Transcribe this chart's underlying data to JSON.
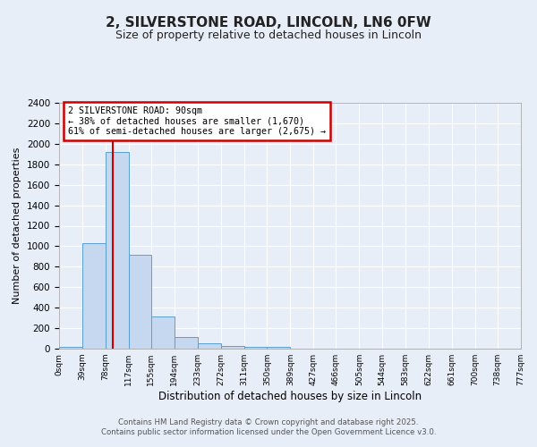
{
  "title": "2, SILVERSTONE ROAD, LINCOLN, LN6 0FW",
  "subtitle": "Size of property relative to detached houses in Lincoln",
  "xlabel": "Distribution of detached houses by size in Lincoln",
  "ylabel": "Number of detached properties",
  "annotation_line1": "2 SILVERSTONE ROAD: 90sqm",
  "annotation_line2": "← 38% of detached houses are smaller (1,670)",
  "annotation_line3": "61% of semi-detached houses are larger (2,675) →",
  "property_line_x": 90,
  "bin_edges": [
    0,
    39,
    78,
    117,
    155,
    194,
    233,
    272,
    311,
    350,
    389,
    427,
    466,
    505,
    544,
    583,
    622,
    661,
    700,
    738,
    777
  ],
  "bin_heights": [
    20,
    1030,
    1920,
    920,
    310,
    110,
    55,
    30,
    20,
    15,
    0,
    0,
    0,
    0,
    0,
    0,
    0,
    0,
    0,
    0
  ],
  "bar_color": "#c5d8ef",
  "bar_edge_color": "#5a9fd4",
  "red_line_color": "#cc0000",
  "annotation_box_color": "#cc0000",
  "background_color": "#e8eef8",
  "grid_color": "#ffffff",
  "ylim": [
    0,
    2400
  ],
  "yticks": [
    0,
    200,
    400,
    600,
    800,
    1000,
    1200,
    1400,
    1600,
    1800,
    2000,
    2200,
    2400
  ],
  "tick_labels": [
    "0sqm",
    "39sqm",
    "78sqm",
    "117sqm",
    "155sqm",
    "194sqm",
    "233sqm",
    "272sqm",
    "311sqm",
    "350sqm",
    "389sqm",
    "427sqm",
    "466sqm",
    "505sqm",
    "544sqm",
    "583sqm",
    "622sqm",
    "661sqm",
    "700sqm",
    "738sqm",
    "777sqm"
  ],
  "footer_line1": "Contains HM Land Registry data © Crown copyright and database right 2025.",
  "footer_line2": "Contains public sector information licensed under the Open Government Licence v3.0."
}
